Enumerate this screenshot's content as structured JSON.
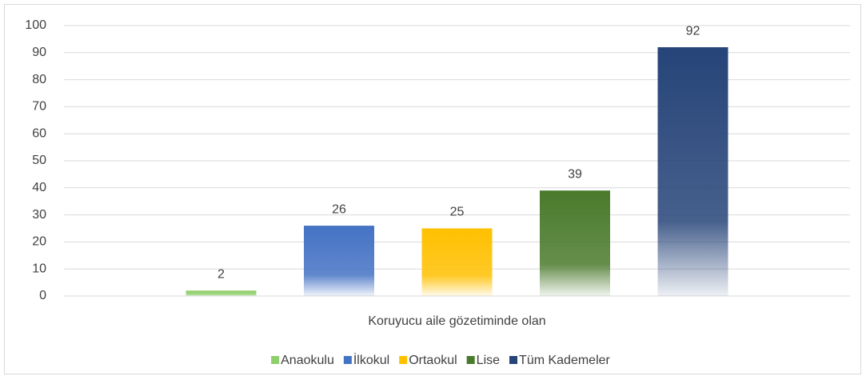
{
  "chart_data": {
    "type": "bar",
    "categories": [
      "Koruyucu aile gözetiminde olan"
    ],
    "series": [
      {
        "name": "Anaokulu",
        "color": "#8fcf6a",
        "values": [
          2
        ]
      },
      {
        "name": "İlkokul",
        "color": "#4472c4",
        "values": [
          26
        ]
      },
      {
        "name": "Ortaokul",
        "color": "#ffc000",
        "values": [
          25
        ]
      },
      {
        "name": "Lise",
        "color": "#4a7a2c",
        "values": [
          39
        ]
      },
      {
        "name": "Tüm Kademeler",
        "color": "#264478",
        "values": [
          92
        ]
      }
    ],
    "ylim": [
      0,
      100
    ],
    "yticks": [
      0,
      10,
      20,
      30,
      40,
      50,
      60,
      70,
      80,
      90,
      100
    ],
    "grid": true,
    "legend": "bottom"
  }
}
